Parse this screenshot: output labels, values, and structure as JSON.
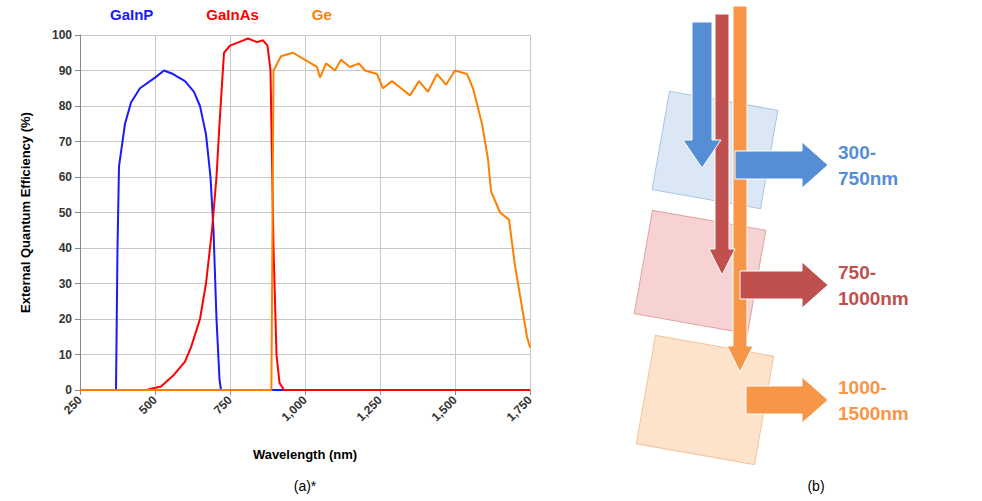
{
  "chart_data": {
    "type": "line",
    "xlabel": "Wavelength (nm)",
    "ylabel": "External Quantum Efficiency (%)",
    "caption": "(a)*",
    "xlim": [
      250,
      1750
    ],
    "xticks": [
      250,
      500,
      750,
      1000,
      1250,
      1500,
      1750
    ],
    "ylim": [
      0,
      100
    ],
    "yticks": [
      0,
      10,
      20,
      30,
      40,
      50,
      60,
      70,
      80,
      90,
      100
    ],
    "grid": true,
    "legend": "top",
    "series": [
      {
        "name": "GaInP",
        "color": "#1a1aff",
        "x": [
          250,
          365,
          370,
          375,
          380,
          400,
          420,
          450,
          500,
          530,
          560,
          600,
          630,
          650,
          670,
          685,
          695,
          705,
          715,
          720,
          1750
        ],
        "values": [
          0,
          0,
          0,
          40,
          63,
          75,
          81,
          85,
          88,
          90,
          89,
          87,
          84,
          80,
          72,
          60,
          45,
          20,
          3,
          0,
          0
        ]
      },
      {
        "name": "GaInAs",
        "color": "#ff0000",
        "x": [
          250,
          470,
          520,
          560,
          600,
          620,
          650,
          670,
          690,
          705,
          715,
          730,
          750,
          780,
          810,
          840,
          860,
          875,
          885,
          895,
          905,
          915,
          930,
          1750
        ],
        "values": [
          0,
          0,
          1,
          4,
          8,
          12,
          20,
          30,
          45,
          60,
          75,
          95,
          97,
          98,
          99,
          98,
          98.5,
          97,
          90,
          40,
          10,
          2,
          0,
          0
        ]
      },
      {
        "name": "Ge",
        "color": "#ff8000",
        "x": [
          250,
          888,
          890,
          895,
          920,
          960,
          1000,
          1040,
          1050,
          1070,
          1100,
          1120,
          1150,
          1180,
          1200,
          1240,
          1260,
          1290,
          1320,
          1350,
          1380,
          1410,
          1440,
          1470,
          1500,
          1540,
          1560,
          1590,
          1610,
          1620,
          1650,
          1680,
          1700,
          1720,
          1740,
          1750
        ],
        "values": [
          0,
          0,
          0,
          90,
          94,
          95,
          93,
          91,
          88,
          92,
          90,
          93,
          91,
          92,
          90,
          89,
          85,
          87,
          85,
          83,
          87,
          84,
          89,
          86,
          90,
          89,
          85,
          75,
          65,
          56,
          50,
          48,
          35,
          25,
          15,
          12
        ]
      }
    ]
  },
  "diagram": {
    "caption": "(b)",
    "outputs": [
      {
        "label": "300-750nm",
        "color": "#558ed5"
      },
      {
        "label": "750-1000nm",
        "color": "#c0504d"
      },
      {
        "label": "1000-1500nm",
        "color": "#f79646"
      }
    ]
  }
}
